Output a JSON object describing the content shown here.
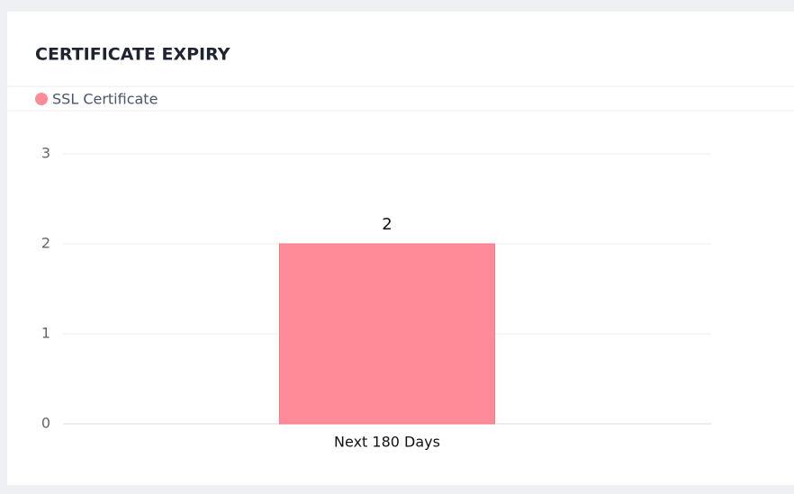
{
  "chart_data": {
    "type": "bar",
    "title": "CERTIFICATE EXPIRY",
    "categories": [
      "Next 180 Days"
    ],
    "series": [
      {
        "name": "SSL Certificate",
        "color": "#ff8b98",
        "values": [
          2
        ]
      }
    ],
    "ylim": [
      0,
      3
    ],
    "yticks": [
      0,
      1,
      2,
      3
    ],
    "grid": true,
    "data_labels": true
  }
}
